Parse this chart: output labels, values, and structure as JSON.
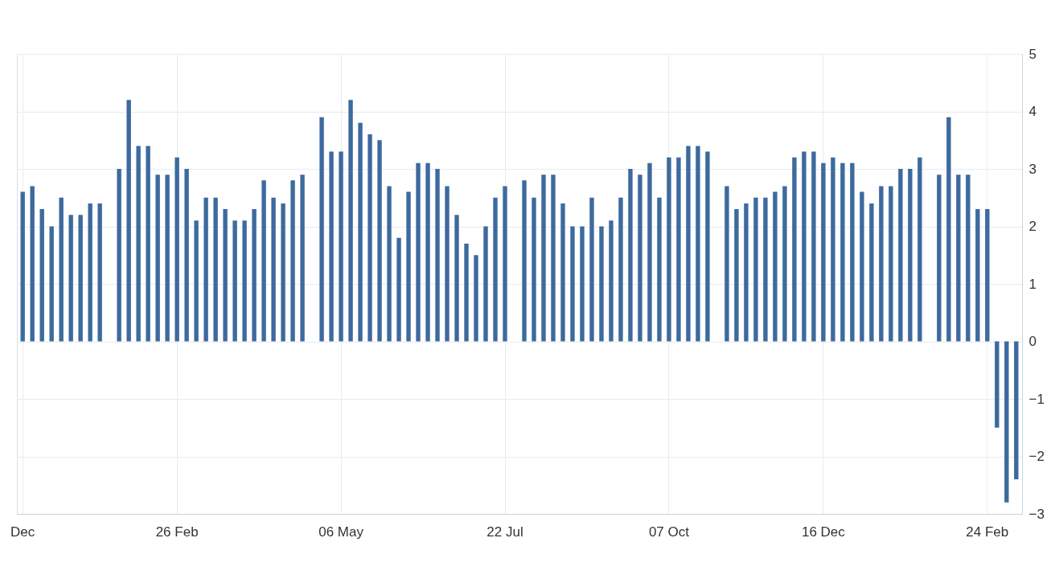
{
  "chart_data": {
    "type": "bar",
    "categories": [
      "Dec",
      null,
      null,
      null,
      null,
      null,
      null,
      null,
      null,
      null,
      null,
      null,
      null,
      null,
      null,
      null,
      "26 Feb",
      null,
      null,
      null,
      null,
      null,
      null,
      null,
      null,
      null,
      null,
      null,
      null,
      null,
      null,
      null,
      null,
      "06 May",
      null,
      null,
      null,
      null,
      null,
      null,
      null,
      null,
      null,
      null,
      null,
      null,
      null,
      null,
      null,
      null,
      "22 Jul",
      null,
      null,
      null,
      null,
      null,
      null,
      null,
      null,
      null,
      null,
      null,
      null,
      null,
      null,
      null,
      null,
      "07 Oct",
      null,
      null,
      null,
      null,
      null,
      null,
      null,
      null,
      null,
      null,
      null,
      null,
      null,
      null,
      null,
      "16 Dec",
      null,
      null,
      null,
      null,
      null,
      null,
      null,
      null,
      null,
      null,
      null,
      null,
      null,
      null,
      null,
      null,
      "24 Feb",
      null,
      null,
      null
    ],
    "values": [
      2.6,
      2.7,
      2.3,
      2.0,
      2.5,
      2.2,
      2.2,
      2.4,
      2.4,
      null,
      3.0,
      4.2,
      3.4,
      3.4,
      2.9,
      2.9,
      3.2,
      3.0,
      2.1,
      2.5,
      2.5,
      2.3,
      2.1,
      2.1,
      2.3,
      2.8,
      2.5,
      2.4,
      2.8,
      2.9,
      null,
      3.9,
      3.3,
      3.3,
      4.2,
      3.8,
      3.6,
      3.5,
      2.7,
      1.8,
      2.6,
      3.1,
      3.1,
      3.0,
      2.7,
      2.2,
      1.7,
      1.5,
      2.0,
      2.5,
      2.7,
      null,
      2.8,
      2.5,
      2.9,
      2.9,
      2.4,
      2.0,
      2.0,
      2.5,
      2.0,
      2.1,
      2.5,
      3.0,
      2.9,
      3.1,
      2.5,
      3.2,
      3.2,
      3.4,
      3.4,
      3.3,
      null,
      2.7,
      2.3,
      2.4,
      2.5,
      2.5,
      2.6,
      2.7,
      3.2,
      3.3,
      3.3,
      3.1,
      3.2,
      3.1,
      3.1,
      2.6,
      2.4,
      2.7,
      2.7,
      3.0,
      3.0,
      3.2,
      null,
      2.9,
      3.9,
      2.9,
      2.9,
      2.3,
      2.3,
      -1.5,
      -2.8,
      -2.4
    ],
    "color": "#3d6a9e",
    "ylim": [
      -3,
      5
    ],
    "yticks": [
      -3,
      -2,
      -1,
      0,
      1,
      2,
      3,
      4,
      5
    ],
    "grid": true
  }
}
